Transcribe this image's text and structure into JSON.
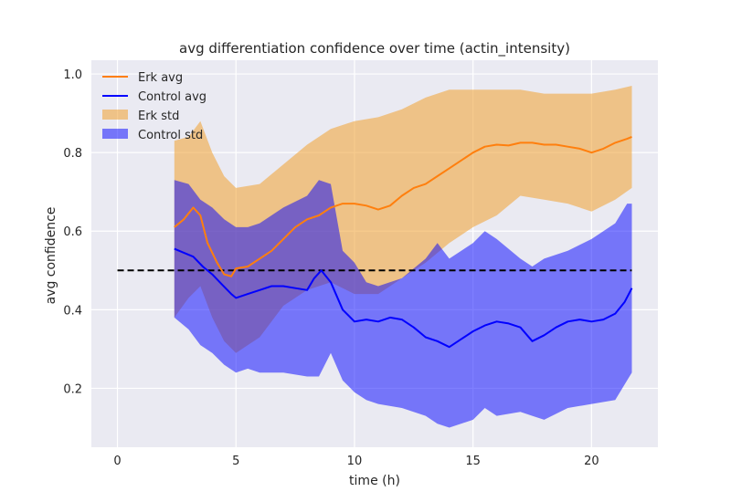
{
  "chart_data": {
    "type": "line",
    "title": "avg differentiation confidence over time (actin_intensity)",
    "xlabel": "time (h)",
    "ylabel": "avg confidence",
    "xlim": [
      -1.1,
      22.8
    ],
    "ylim": [
      0.05,
      1.035
    ],
    "xticks": [
      0,
      5,
      10,
      15,
      20
    ],
    "xtick_labels": [
      "0",
      "5",
      "10",
      "15",
      "20"
    ],
    "yticks": [
      0.2,
      0.4,
      0.6,
      0.8,
      1.0
    ],
    "ytick_labels": [
      "0.2",
      "0.4",
      "0.6",
      "0.8",
      "1.0"
    ],
    "grid": true,
    "legend_position": "top-left",
    "legend": [
      "Erk avg",
      "Control avg",
      "Erk std",
      "Control std"
    ],
    "reference_line": {
      "y": 0.5,
      "x_range": [
        0,
        21.7
      ],
      "style": "dashed",
      "color": "#000000"
    },
    "series": [
      {
        "name": "Erk avg",
        "color": "#ff7f0e",
        "x": [
          2.4,
          2.8,
          3.2,
          3.5,
          3.8,
          4.2,
          4.5,
          4.8,
          5.0,
          5.5,
          6.0,
          6.5,
          7.0,
          7.5,
          8.0,
          8.5,
          9.0,
          9.5,
          10.0,
          10.5,
          11.0,
          11.5,
          12.0,
          12.5,
          13.0,
          13.5,
          14.0,
          14.5,
          15.0,
          15.5,
          16.0,
          16.5,
          17.0,
          17.5,
          18.0,
          18.5,
          19.0,
          19.5,
          20.0,
          20.5,
          21.0,
          21.5,
          21.7
        ],
        "values": [
          0.61,
          0.63,
          0.66,
          0.64,
          0.57,
          0.52,
          0.49,
          0.485,
          0.505,
          0.51,
          0.53,
          0.55,
          0.58,
          0.61,
          0.63,
          0.64,
          0.66,
          0.67,
          0.67,
          0.665,
          0.655,
          0.665,
          0.69,
          0.71,
          0.72,
          0.74,
          0.76,
          0.78,
          0.8,
          0.815,
          0.82,
          0.818,
          0.825,
          0.825,
          0.82,
          0.82,
          0.815,
          0.81,
          0.8,
          0.81,
          0.825,
          0.835,
          0.84
        ]
      },
      {
        "name": "Control avg",
        "color": "#0000ff",
        "x": [
          2.4,
          2.8,
          3.2,
          3.6,
          4.0,
          4.4,
          4.8,
          5.0,
          5.5,
          6.0,
          6.5,
          7.0,
          7.5,
          8.0,
          8.3,
          8.6,
          9.0,
          9.5,
          10.0,
          10.5,
          11.0,
          11.5,
          12.0,
          12.5,
          13.0,
          13.5,
          14.0,
          14.5,
          15.0,
          15.5,
          16.0,
          16.5,
          17.0,
          17.5,
          18.0,
          18.5,
          19.0,
          19.5,
          20.0,
          20.5,
          21.0,
          21.4,
          21.7
        ],
        "values": [
          0.555,
          0.545,
          0.535,
          0.51,
          0.49,
          0.465,
          0.44,
          0.43,
          0.44,
          0.45,
          0.46,
          0.46,
          0.455,
          0.45,
          0.48,
          0.5,
          0.47,
          0.4,
          0.37,
          0.375,
          0.37,
          0.38,
          0.375,
          0.355,
          0.33,
          0.32,
          0.305,
          0.325,
          0.345,
          0.36,
          0.37,
          0.365,
          0.355,
          0.32,
          0.335,
          0.355,
          0.37,
          0.375,
          0.37,
          0.375,
          0.39,
          0.42,
          0.455
        ]
      },
      {
        "name": "Erk std",
        "color": "#f0a030",
        "x": [
          2.4,
          3.0,
          3.5,
          4.0,
          4.5,
          5.0,
          6.0,
          7.0,
          8.0,
          9.0,
          10.0,
          11.0,
          12.0,
          13.0,
          14.0,
          15.0,
          16.0,
          17.0,
          18.0,
          19.0,
          20.0,
          21.0,
          21.7
        ],
        "upper": [
          0.83,
          0.84,
          0.88,
          0.8,
          0.74,
          0.71,
          0.72,
          0.77,
          0.82,
          0.86,
          0.88,
          0.89,
          0.91,
          0.94,
          0.96,
          0.96,
          0.96,
          0.96,
          0.95,
          0.95,
          0.95,
          0.96,
          0.97
        ],
        "lower": [
          0.38,
          0.43,
          0.46,
          0.38,
          0.32,
          0.29,
          0.33,
          0.41,
          0.45,
          0.47,
          0.44,
          0.44,
          0.48,
          0.52,
          0.57,
          0.61,
          0.64,
          0.69,
          0.68,
          0.67,
          0.65,
          0.68,
          0.71
        ]
      },
      {
        "name": "Control std",
        "color": "#0000ff",
        "x": [
          2.4,
          3.0,
          3.5,
          4.0,
          4.5,
          5.0,
          5.5,
          6.0,
          7.0,
          8.0,
          8.5,
          9.0,
          9.5,
          10.0,
          10.5,
          11.0,
          12.0,
          13.0,
          13.5,
          14.0,
          15.0,
          15.5,
          16.0,
          17.0,
          17.5,
          18.0,
          19.0,
          20.0,
          21.0,
          21.5,
          21.7
        ],
        "upper": [
          0.73,
          0.72,
          0.68,
          0.66,
          0.63,
          0.61,
          0.61,
          0.62,
          0.66,
          0.69,
          0.73,
          0.72,
          0.55,
          0.52,
          0.47,
          0.46,
          0.48,
          0.53,
          0.57,
          0.53,
          0.57,
          0.6,
          0.58,
          0.53,
          0.51,
          0.53,
          0.55,
          0.58,
          0.62,
          0.67,
          0.67
        ],
        "lower": [
          0.38,
          0.35,
          0.31,
          0.29,
          0.26,
          0.24,
          0.25,
          0.24,
          0.24,
          0.23,
          0.23,
          0.29,
          0.22,
          0.19,
          0.17,
          0.16,
          0.15,
          0.13,
          0.11,
          0.1,
          0.12,
          0.15,
          0.13,
          0.14,
          0.13,
          0.12,
          0.15,
          0.16,
          0.17,
          0.22,
          0.24
        ]
      }
    ]
  }
}
